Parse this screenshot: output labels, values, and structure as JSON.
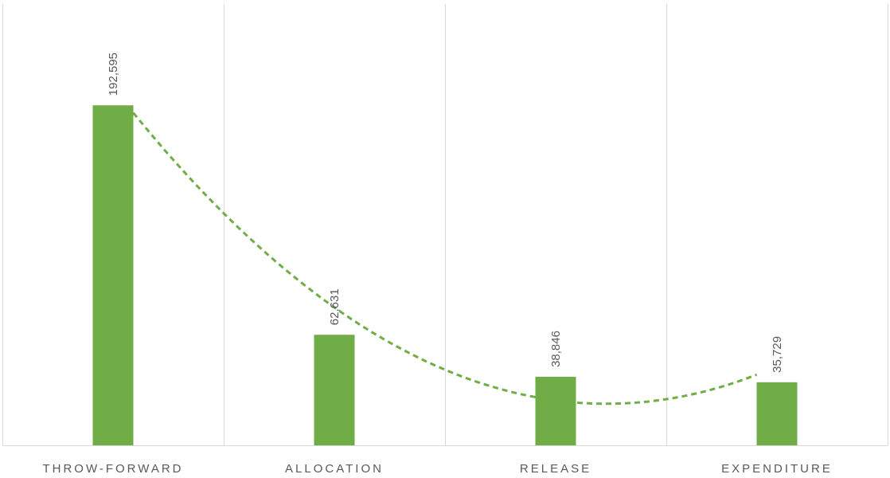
{
  "chart_data": {
    "type": "bar",
    "categories": [
      "THROW-FORWARD",
      "ALLOCATION",
      "RELEASE",
      "EXPENDITURE"
    ],
    "values": [
      192595,
      62631,
      38846,
      35729
    ],
    "data_labels": [
      "192,595",
      "62,631",
      "38,846",
      "35,729"
    ],
    "title": "",
    "xlabel": "",
    "ylabel": "",
    "ylim": [
      0,
      250000
    ],
    "grid": "vertical category separators",
    "legend": "none",
    "trendline": {
      "type": "polynomial",
      "order": 2,
      "style": "dashed"
    },
    "colors": {
      "bar": "#70AD47",
      "trendline": "#70AD47",
      "grid": "#D9D9D9",
      "text": "#595959"
    }
  }
}
